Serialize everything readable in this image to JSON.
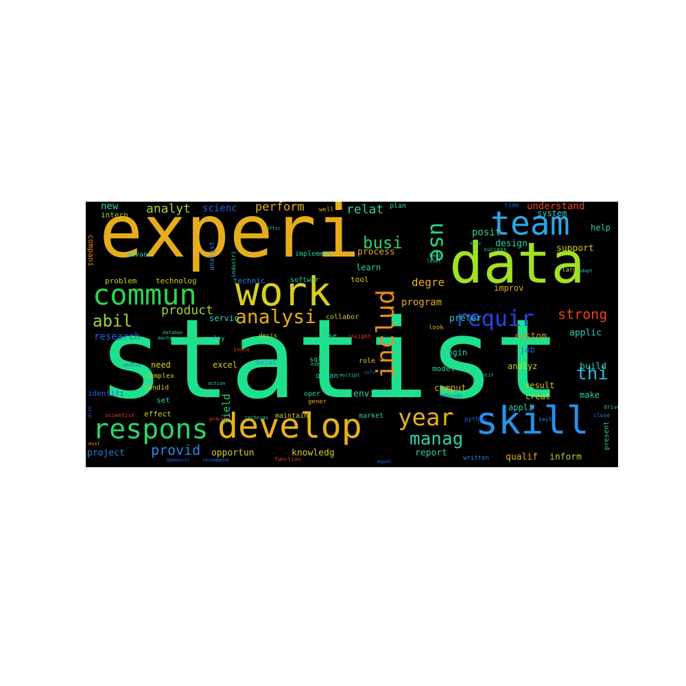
{
  "word_cloud": {
    "background": "#000000",
    "words": [
      {
        "text": "statist",
        "color": "#1fe08c"
      },
      {
        "text": "experi",
        "color": "#e6ad1b"
      },
      {
        "text": "data",
        "color": "#a2e11f"
      },
      {
        "text": "work",
        "color": "#d6cf1f"
      },
      {
        "text": "team",
        "color": "#2ba6e8"
      },
      {
        "text": "skill",
        "color": "#2b8fe8"
      },
      {
        "text": "develop",
        "color": "#e6b21b"
      },
      {
        "text": "commun",
        "color": "#2fd24d"
      },
      {
        "text": "respons",
        "color": "#2fd26a"
      },
      {
        "text": "includ",
        "color": "#e88a1b"
      },
      {
        "text": "requir",
        "color": "#2545e0"
      },
      {
        "text": "year",
        "color": "#e6b21b"
      },
      {
        "text": "analysi",
        "color": "#e6ad1b"
      },
      {
        "text": "use",
        "color": "#2bd27f"
      },
      {
        "text": "busi",
        "color": "#2bd26a"
      },
      {
        "text": "manag",
        "color": "#2bd2b0"
      },
      {
        "text": "thi",
        "color": "#2fb8e0"
      },
      {
        "text": "abil",
        "color": "#a8d22b"
      },
      {
        "text": "strong",
        "color": "#e8421b"
      },
      {
        "text": "provid",
        "color": "#2b86e0"
      },
      {
        "text": "product",
        "color": "#a8d22b"
      },
      {
        "text": "analyt",
        "color": "#a8d22b"
      },
      {
        "text": "perform",
        "color": "#e6b21b"
      },
      {
        "text": "relat",
        "color": "#2bd2b0"
      },
      {
        "text": "posit",
        "color": "#2bd2b0"
      },
      {
        "text": "field",
        "color": "#2bd27f"
      },
      {
        "text": "degre",
        "color": "#e6b21b"
      },
      {
        "text": "program",
        "color": "#e6ad1b"
      },
      {
        "text": "research",
        "color": "#2562e0"
      },
      {
        "text": "project",
        "color": "#2b86e0"
      },
      {
        "text": "opportun",
        "color": "#d6cf1f"
      },
      {
        "text": "knowledg",
        "color": "#d6cf1f"
      },
      {
        "text": "report",
        "color": "#2bd2b0"
      },
      {
        "text": "qualif",
        "color": "#e6ad1b"
      },
      {
        "text": "inform",
        "color": "#a8d22b"
      },
      {
        "text": "understand",
        "color": "#e8421b"
      },
      {
        "text": "design",
        "color": "#2bd2b0"
      },
      {
        "text": "support",
        "color": "#d6cf1f"
      },
      {
        "text": "comput",
        "color": "#e6ad1b"
      },
      {
        "text": "environ",
        "color": "#2bd2b0"
      },
      {
        "text": "applic",
        "color": "#2bd2b0"
      },
      {
        "text": "custom",
        "color": "#e88a1b"
      },
      {
        "text": "build",
        "color": "#2bd2b0"
      },
      {
        "text": "make",
        "color": "#2bd2b0"
      },
      {
        "text": "creat",
        "color": "#d6cf1f"
      },
      {
        "text": "result",
        "color": "#d6cf1f"
      },
      {
        "text": "analyz",
        "color": "#d6cf1f"
      },
      {
        "text": "appli",
        "color": "#2bd2b0"
      },
      {
        "text": "job",
        "color": "#2562e0"
      },
      {
        "text": "engin",
        "color": "#2bd2b0"
      },
      {
        "text": "prefer",
        "color": "#2bd2b0"
      },
      {
        "text": "need",
        "color": "#d6cf1f"
      },
      {
        "text": "excel",
        "color": "#d6cf1f"
      },
      {
        "text": "servic",
        "color": "#2bd2b0"
      },
      {
        "text": "scienc",
        "color": "#2562e0"
      },
      {
        "text": "new",
        "color": "#2bd2b0"
      },
      {
        "text": "intern",
        "color": "#a8d22b"
      },
      {
        "text": "advanc",
        "color": "#2bd2b0"
      },
      {
        "text": "problem",
        "color": "#d6cf1f"
      },
      {
        "text": "technolog",
        "color": "#d6cf1f"
      },
      {
        "text": "technic",
        "color": "#2b86e0"
      },
      {
        "text": "softwar",
        "color": "#2bd2b0"
      },
      {
        "text": "tool",
        "color": "#d6cf1f"
      },
      {
        "text": "learn",
        "color": "#2bd2b0"
      },
      {
        "text": "process",
        "color": "#e6ad1b"
      },
      {
        "text": "implement",
        "color": "#2bd2b0"
      },
      {
        "text": "improv",
        "color": "#e6ad1b"
      },
      {
        "text": "system",
        "color": "#2bd2b0"
      },
      {
        "text": "help",
        "color": "#2bd2b0"
      },
      {
        "text": "time",
        "color": "#2562e0"
      },
      {
        "text": "plan",
        "color": "#2bd2b0"
      },
      {
        "text": "well",
        "color": "#e6ad1b"
      },
      {
        "text": "companí",
        "color": "#e88a1b"
      },
      {
        "text": "analyst",
        "color": "#2b86e0"
      },
      {
        "text": "collabor",
        "color": "#d6cf1f"
      },
      {
        "text": "base",
        "color": "#2bd2b0"
      },
      {
        "text": "decis",
        "color": "#d6cf1f"
      },
      {
        "text": "sql",
        "color": "#2bd2b0"
      },
      {
        "text": "solut",
        "color": "#2b86e0"
      },
      {
        "text": "organ",
        "color": "#2bd2b0"
      },
      {
        "text": "role",
        "color": "#d6cf1f"
      },
      {
        "text": "model",
        "color": "#2bd2b0"
      },
      {
        "text": "oper",
        "color": "#2bd2b0"
      },
      {
        "text": "gener",
        "color": "#e6ad1b"
      },
      {
        "text": "maintain",
        "color": "#d6cf1f"
      },
      {
        "text": "market",
        "color": "#2bd2b0"
      },
      {
        "text": "python",
        "color": "#2562e0"
      },
      {
        "text": "present",
        "color": "#2bd2b0"
      },
      {
        "text": "written",
        "color": "#2b86e0"
      },
      {
        "text": "function",
        "color": "#e8421b"
      },
      {
        "text": "effect",
        "color": "#d6cf1f"
      },
      {
        "text": "set",
        "color": "#2bd2b0"
      },
      {
        "text": "candid",
        "color": "#d6cf1f"
      },
      {
        "text": "complex",
        "color": "#d6cf1f"
      },
      {
        "text": "identifi",
        "color": "#2562e0"
      },
      {
        "text": "employ",
        "color": "#2bd2b0"
      },
      {
        "text": "look",
        "color": "#e6ad1b"
      },
      {
        "text": "larg",
        "color": "#d6cf1f"
      },
      {
        "text": "lead",
        "color": "#2bd2b0"
      },
      {
        "text": "success",
        "color": "#2bd2b0"
      },
      {
        "text": "insight",
        "color": "#e8421b"
      },
      {
        "text": "scientist",
        "color": "#e8421b"
      },
      {
        "text": "innov",
        "color": "#e8421b"
      },
      {
        "text": "drive",
        "color": "#2bd2b0"
      },
      {
        "text": "close",
        "color": "#2b86e0"
      },
      {
        "text": "test",
        "color": "#2b86e0"
      },
      {
        "text": "must",
        "color": "#e88a1b"
      },
      {
        "text": "industri",
        "color": "#2bd2b0"
      },
      {
        "text": "offic",
        "color": "#2bd2b0"
      },
      {
        "text": "adapt",
        "color": "#2bd2b0"
      },
      {
        "text": "quantit",
        "color": "#2bd2b0"
      },
      {
        "text": "individu",
        "color": "#2562e0"
      },
      {
        "text": "multipl",
        "color": "#2bd2b0"
      },
      {
        "text": "databas",
        "color": "#2bd2b0"
      },
      {
        "text": "machin",
        "color": "#2bd2b0"
      },
      {
        "text": "within",
        "color": "#2562e0"
      },
      {
        "text": "action",
        "color": "#2bd2b0"
      },
      {
        "text": "method",
        "color": "#2bd2b0"
      },
      {
        "text": "also",
        "color": "#2562e0"
      },
      {
        "text": "techniqu",
        "color": "#2bd2b0"
      },
      {
        "text": "practic",
        "color": "#e8421b"
      },
      {
        "text": "execut",
        "color": "#2bd2b0"
      },
      {
        "text": "solv",
        "color": "#2562e0"
      },
      {
        "text": "equal",
        "color": "#2562e0"
      },
      {
        "text": "level",
        "color": "#2bd2b0"
      },
      {
        "text": "educ",
        "color": "#2bd2b0"
      },
      {
        "text": "demonstr",
        "color": "#2562e0"
      },
      {
        "text": "recommend",
        "color": "#2562e0"
      }
    ]
  }
}
